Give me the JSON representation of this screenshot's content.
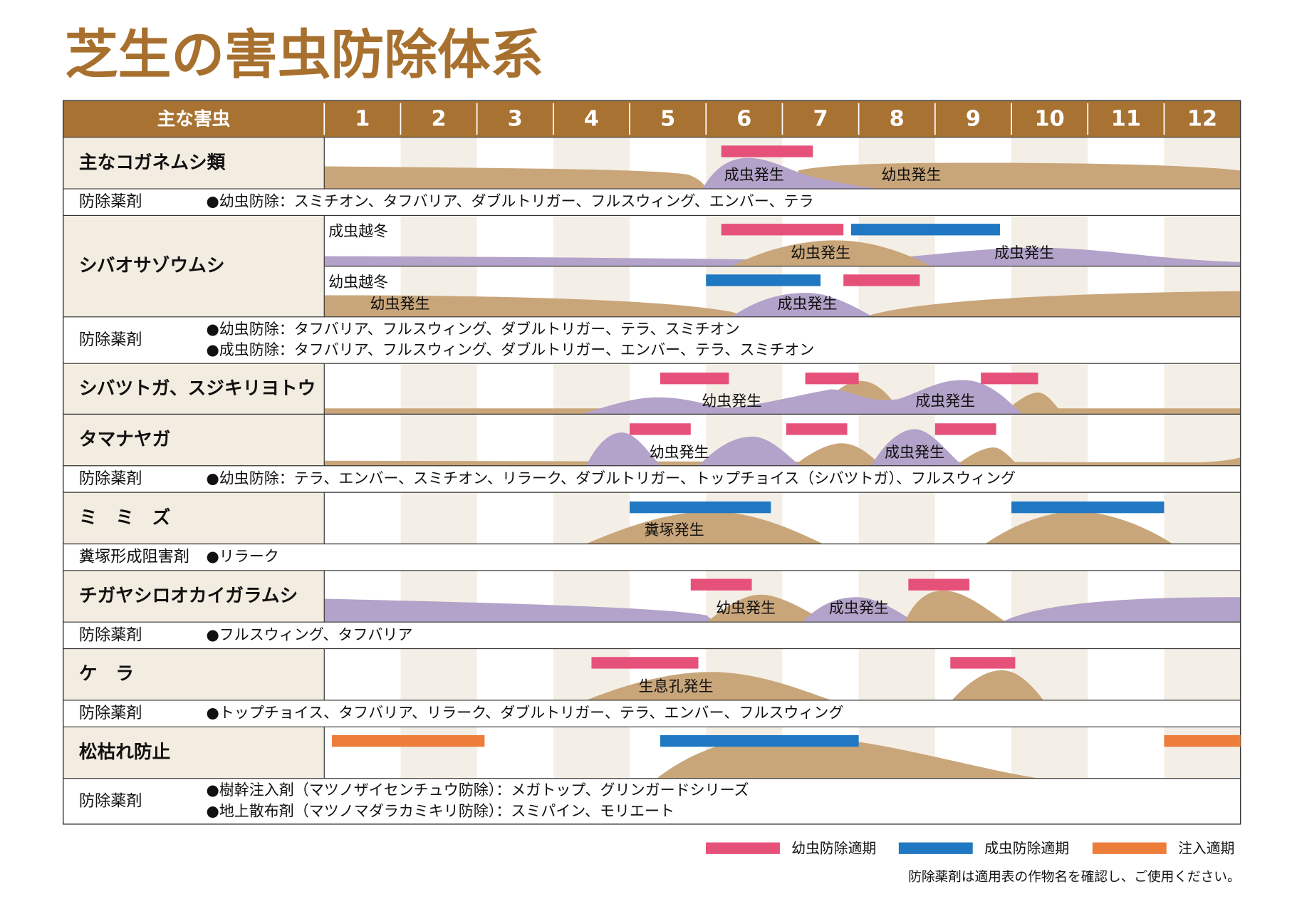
{
  "title": "芝生の害虫防除体系",
  "header": {
    "pest": "主な害虫",
    "months": [
      "1",
      "2",
      "3",
      "4",
      "5",
      "6",
      "7",
      "8",
      "9",
      "10",
      "11",
      "12"
    ]
  },
  "rows": [
    {
      "pest": "主なコガネムシ類",
      "tracks": [
        {
          "labels": [
            "成虫発生",
            "幼虫発生"
          ],
          "periods": [
            {
              "legend": 0,
              "start": 6.2,
              "end": 7.4
            }
          ]
        }
      ]
    },
    {
      "pest": "シバオサゾウムシ",
      "tracks": [
        {
          "labels": [
            "成虫越冬",
            "幼虫発生",
            "成虫発生"
          ],
          "periods": [
            {
              "legend": 0,
              "start": 6.2,
              "end": 7.8
            },
            {
              "legend": 1,
              "start": 7.9,
              "end": 9.85
            }
          ]
        },
        {
          "labels": [
            "幼虫越冬",
            "幼虫発生",
            "成虫発生"
          ],
          "periods": [
            {
              "legend": 1,
              "start": 6.0,
              "end": 7.5
            },
            {
              "legend": 0,
              "start": 7.8,
              "end": 8.8
            }
          ]
        }
      ]
    },
    {
      "pest": "シバツトガ、スジキリヨトウ",
      "tracks": [
        {
          "labels": [
            "幼虫発生",
            "成虫発生"
          ],
          "periods": [
            {
              "legend": 0,
              "start": 5.4,
              "end": 6.3
            },
            {
              "legend": 0,
              "start": 7.3,
              "end": 8.0
            },
            {
              "legend": 0,
              "start": 9.6,
              "end": 10.35
            }
          ]
        }
      ]
    },
    {
      "pest": "タマナヤガ",
      "tracks": [
        {
          "labels": [
            "幼虫発生",
            "成虫発生"
          ],
          "periods": [
            {
              "legend": 0,
              "start": 5.0,
              "end": 5.8
            },
            {
              "legend": 0,
              "start": 7.05,
              "end": 7.85
            },
            {
              "legend": 0,
              "start": 9.0,
              "end": 9.8
            }
          ]
        }
      ]
    },
    {
      "pest": "ミ　ミ　ズ",
      "tracks": [
        {
          "labels": [
            "糞塚発生"
          ],
          "periods": [
            {
              "legend": 1,
              "start": 5.0,
              "end": 6.85
            },
            {
              "legend": 1,
              "start": 10.0,
              "end": 12.0
            }
          ]
        }
      ]
    },
    {
      "pest": "チガヤシロオカイガラムシ",
      "tracks": [
        {
          "labels": [
            "幼虫発生",
            "成虫発生"
          ],
          "periods": [
            {
              "legend": 0,
              "start": 5.8,
              "end": 6.6
            },
            {
              "legend": 0,
              "start": 8.65,
              "end": 9.45
            }
          ]
        }
      ]
    },
    {
      "pest": "ケ　ラ",
      "tracks": [
        {
          "labels": [
            "生息孔発生"
          ],
          "periods": [
            {
              "legend": 0,
              "start": 4.5,
              "end": 5.9
            },
            {
              "legend": 0,
              "start": 9.2,
              "end": 10.05
            }
          ]
        }
      ]
    },
    {
      "pest": "松枯れ防止",
      "tracks": [
        {
          "periods": [
            {
              "legend": 2,
              "start": 1.1,
              "end": 3.1
            },
            {
              "legend": 2,
              "start": 12.0,
              "end": 13.0
            },
            {
              "legend": 1,
              "start": 5.4,
              "end": 8.0
            }
          ]
        }
      ]
    }
  ],
  "drugs": [
    {
      "label": "防除薬剤",
      "lines": [
        "●幼虫防除：スミチオン、タフバリア、ダブルトリガー、フルスウィング、エンバー、テラ"
      ]
    },
    {
      "label": "防除薬剤",
      "lines": [
        "●幼虫防除：タフバリア、フルスウィング、ダブルトリガー、テラ、スミチオン",
        "●成虫防除：タフバリア、フルスウィング、ダブルトリガー、エンバー、テラ、スミチオン"
      ]
    },
    {
      "label": "防除薬剤",
      "lines": [
        "●幼虫防除：テラ、エンバー、スミチオン、リラーク、ダブルトリガー、トップチョイス（シバツトガ）、フルスウィング"
      ]
    },
    {
      "label": "糞塚形成阻害剤",
      "lines": [
        "●リラーク"
      ]
    },
    {
      "label": "防除薬剤",
      "lines": [
        "●フルスウィング、タフバリア"
      ]
    },
    {
      "label": "防除薬剤",
      "lines": [
        "●トップチョイス、タフバリア、リラーク、ダブルトリガー、テラ、エンバー、フルスウィング"
      ]
    },
    {
      "label": "防除薬剤",
      "lines": [
        "●樹幹注入剤（マツノザイセンチュウ防除）：メガトップ、グリンガードシリーズ",
        "●地上散布剤（マツノマダラカミキリ防除）：スミパイン、モリエート"
      ]
    }
  ],
  "legend": [
    {
      "name": "幼虫防除適期",
      "color": "#e6517a"
    },
    {
      "name": "成虫防除適期",
      "color": "#1f78c1"
    },
    {
      "name": "注入適期",
      "color": "#ed7d3a"
    }
  ],
  "note": "防除薬剤は適用表の作物名を確認し、ご使用ください。"
}
